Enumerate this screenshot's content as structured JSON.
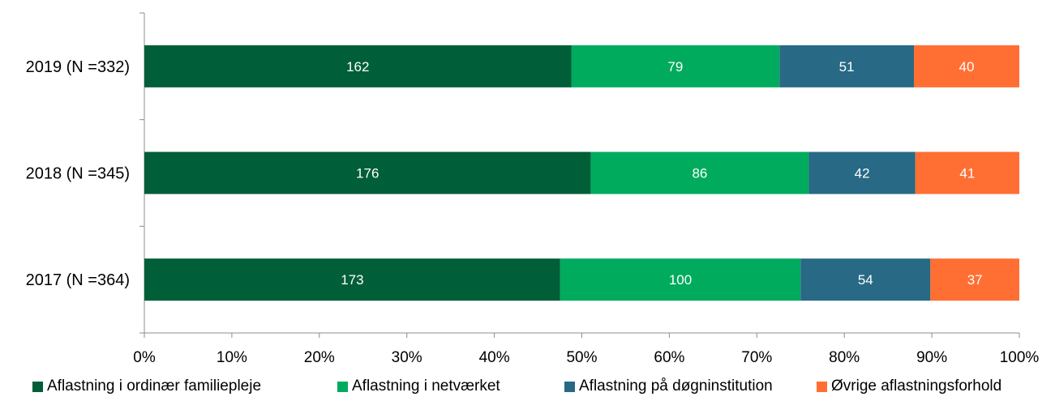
{
  "chart_data": {
    "type": "bar",
    "orientation": "horizontal",
    "stacked": "percent",
    "categories": [
      "2019 (N =332)",
      "2018 (N =345)",
      "2017 (N =364)"
    ],
    "series": [
      {
        "name": "Aflastning i ordinær familiepleje",
        "color": "#005E38",
        "values": [
          162,
          176,
          173
        ]
      },
      {
        "name": "Aflastning i netværket",
        "color": "#00AB5E",
        "values": [
          79,
          86,
          100
        ]
      },
      {
        "name": "Aflastning på døgninstitution",
        "color": "#286985",
        "values": [
          51,
          42,
          54
        ]
      },
      {
        "name": "Øvrige aflastningsforhold",
        "color": "#FF6F33",
        "values": [
          40,
          41,
          37
        ]
      }
    ],
    "x_ticks": [
      "0%",
      "10%",
      "20%",
      "30%",
      "40%",
      "50%",
      "60%",
      "70%",
      "80%",
      "90%",
      "100%"
    ],
    "xlim": [
      0,
      100
    ],
    "grid": false,
    "legend_position": "bottom"
  }
}
